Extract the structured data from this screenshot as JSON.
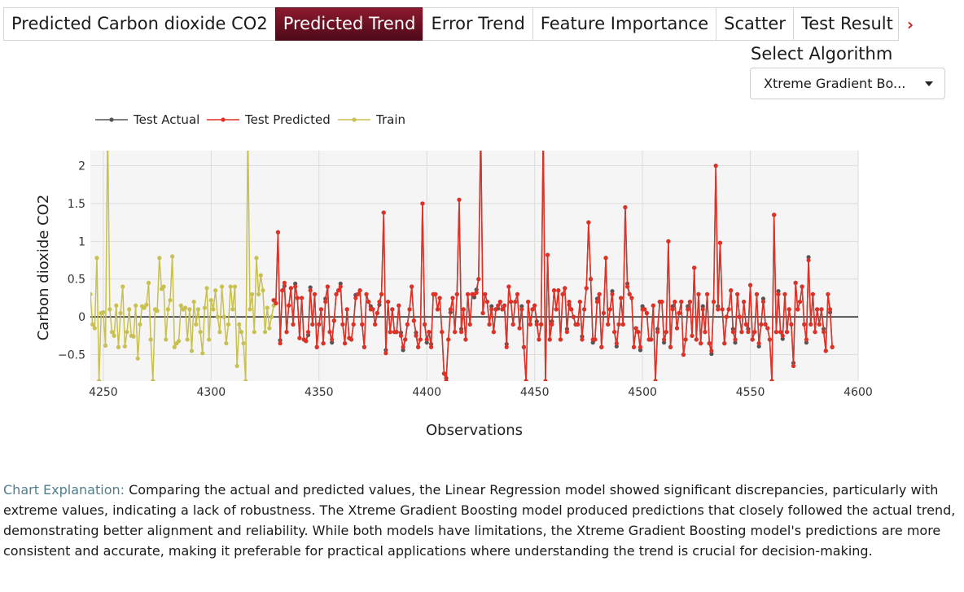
{
  "tabs": [
    {
      "label": "Predicted Carbon dioxide CO2",
      "active": false
    },
    {
      "label": "Predicted Trend",
      "active": true
    },
    {
      "label": "Error Trend",
      "active": false
    },
    {
      "label": "Feature Importance",
      "active": false
    },
    {
      "label": "Scatter",
      "active": false
    },
    {
      "label": "Test Result",
      "active": false
    }
  ],
  "algorithm": {
    "label": "Select Algorithm",
    "selected": "Xtreme Gradient Bo..."
  },
  "explanation": {
    "lead": "Chart Explanation:",
    "text": " Comparing the actual and predicted values, the Linear Regression model showed significant discrepancies, particularly with extreme values, indicating a lack of robustness. The Xtreme Gradient Boosting model produced predictions that closely followed the actual trend, demonstrating better alignment and reliability. While both models have limitations, the Xtreme Gradient Boosting model's predictions are more consistent and accurate, making it preferable for practical applications where understanding the trend is crucial for decision-making."
  },
  "colors": {
    "active_tab": "#6b1022",
    "test_actual": "#555555",
    "test_predicted": "#e03127",
    "train": "#c8c050",
    "plot_bg": "#f5f5f5"
  },
  "chart_data": {
    "type": "line",
    "xlabel": "Observations",
    "ylabel": "Carbon dioxide CO2",
    "xlim": [
      4244,
      4600
    ],
    "ylim": [
      -0.85,
      2.2
    ],
    "xticks": [
      4250,
      4300,
      4350,
      4400,
      4450,
      4500,
      4550,
      4600
    ],
    "yticks": [
      2,
      1.5,
      1,
      0.5,
      0,
      -0.5
    ],
    "ytick_labels": [
      "2",
      "1.5",
      "1",
      "0.5",
      "0",
      "−0.5"
    ],
    "grid": true,
    "legend": "top-left",
    "series": [
      {
        "name": "Test Actual"
      },
      {
        "name": "Test Predicted"
      },
      {
        "name": "Train"
      }
    ],
    "train_x_start": 4244,
    "train": [
      0.3,
      -0.1,
      -0.15,
      0.78,
      -0.85,
      0.05,
      0.06,
      -0.38,
      2.5,
      0.1,
      -0.2,
      -0.25,
      0.15,
      -0.4,
      0.05,
      0.4,
      -0.39,
      -0.2,
      0.1,
      -0.25,
      -0.26,
      0.15,
      -0.55,
      -0.1,
      0.14,
      0.12,
      0.16,
      0.45,
      -0.3,
      -0.85,
      0.1,
      0.08,
      0.78,
      0.37,
      0.4,
      -0.3,
      0.1,
      0.22,
      0.8,
      -0.4,
      -0.35,
      -0.32,
      0.15,
      0.1,
      0.12,
      -0.3,
      0.1,
      -0.45,
      0.2,
      -0.1,
      0.1,
      -0.2,
      -0.48,
      0.12,
      0.38,
      -0.3,
      0.22,
      0.1,
      0.35,
      0.0,
      -0.2,
      0.4,
      0.0,
      -0.35,
      -0.1,
      0.4,
      0.1,
      0.4,
      -0.65,
      -0.1,
      -0.2,
      -0.35,
      -0.85,
      2.5,
      0.1,
      0.3,
      -0.2,
      0.78,
      0.3,
      0.55,
      0.35,
      -0.2,
      0.12,
      -0.15,
      0.0,
      0.15
    ],
    "test_x_start": 4329,
    "test_predicted": [
      0.22,
      0.18,
      1.12,
      -0.35,
      0.35,
      0.45,
      -0.2,
      0.15,
      0.38,
      -0.1,
      0.4,
      0.25,
      -0.28,
      0.25,
      -0.3,
      -0.32,
      -0.2,
      0.35,
      -0.1,
      0.3,
      -0.4,
      -0.1,
      0.1,
      -0.35,
      0.2,
      0.4,
      -0.2,
      -0.3,
      -0.05,
      0.3,
      0.35,
      0.4,
      -0.1,
      -0.35,
      0.1,
      -0.28,
      -0.3,
      -0.1,
      0.25,
      0.3,
      0.35,
      -0.1,
      -0.4,
      0.3,
      0.2,
      0.1,
      0.1,
      -0.1,
      0.05,
      0.2,
      0.3,
      1.38,
      -0.48,
      0.2,
      -0.2,
      0.1,
      -0.2,
      -0.2,
      0.15,
      -0.25,
      -0.4,
      -0.3,
      -0.1,
      0.1,
      0.4,
      -0.05,
      -0.25,
      -0.4,
      -0.3,
      1.5,
      -0.1,
      -0.3,
      -0.2,
      -0.4,
      0.3,
      0.3,
      0.1,
      0.25,
      -0.2,
      -0.75,
      -0.85,
      -0.3,
      0.1,
      0.25,
      -0.2,
      0.3,
      1.55,
      -0.2,
      0.1,
      -0.3,
      0.3,
      -0.1,
      0.3,
      0.3,
      0.32,
      0.5,
      2.5,
      0.05,
      0.3,
      0.2,
      -0.1,
      0.1,
      -0.2,
      0.1,
      0.15,
      0.2,
      0.1,
      0.15,
      -0.4,
      0.4,
      0.2,
      -0.1,
      0.2,
      0.3,
      -0.15,
      0.1,
      -0.4,
      -0.85,
      0.2,
      -0.1,
      0.1,
      0.15,
      -0.1,
      -0.3,
      -0.1,
      2.5,
      -0.85,
      0.82,
      -0.3,
      -0.1,
      0.35,
      0.1,
      0.35,
      -0.3,
      0.3,
      0.38,
      -0.2,
      0.2,
      0.1,
      0.0,
      -0.1,
      -0.1,
      0.2,
      -0.3,
      0.1,
      0.38,
      1.25,
      0.5,
      -0.3,
      -0.3,
      0.2,
      0.3,
      -0.4,
      0.05,
      0.78,
      -0.1,
      0.1,
      0.3,
      -0.2,
      -0.35,
      -0.1,
      0.25,
      -0.1,
      1.45,
      0.4,
      0.3,
      0.25,
      -0.4,
      -0.15,
      -0.2,
      -0.4,
      0.1,
      0.1,
      0.05,
      -0.3,
      -0.3,
      0.15,
      -0.85,
      -0.2,
      0.2,
      0.2,
      -0.3,
      -0.2,
      1.0,
      -0.4,
      0.1,
      0.2,
      -0.15,
      0.05,
      0.2,
      -0.5,
      -0.3,
      0.1,
      0.2,
      -0.25,
      0.65,
      -0.3,
      0.3,
      -0.35,
      0.1,
      -0.2,
      0.3,
      -0.35,
      -0.45,
      0.2,
      2.0,
      0.1,
      0.98,
      0.1,
      -0.35,
      0.0,
      0.1,
      0.35,
      -0.2,
      -0.3,
      0.3,
      0.0,
      -0.2,
      0.2,
      -0.1,
      -0.2,
      0.42,
      -0.3,
      -0.2,
      0.3,
      -0.35,
      -0.1,
      0.2,
      -0.1,
      -0.15,
      -0.3,
      -0.85,
      1.35,
      -0.2,
      0.3,
      -0.2,
      -0.25,
      0.3,
      -0.2,
      0.1,
      -0.1,
      -0.65,
      0.45,
      0.1,
      0.2,
      0.4,
      -0.1,
      -0.3,
      0.75,
      -0.1,
      0.3,
      -0.2,
      0.1,
      -0.1,
      0.1,
      -0.2,
      -0.45,
      0.3,
      0.1,
      -0.4
    ]
  }
}
